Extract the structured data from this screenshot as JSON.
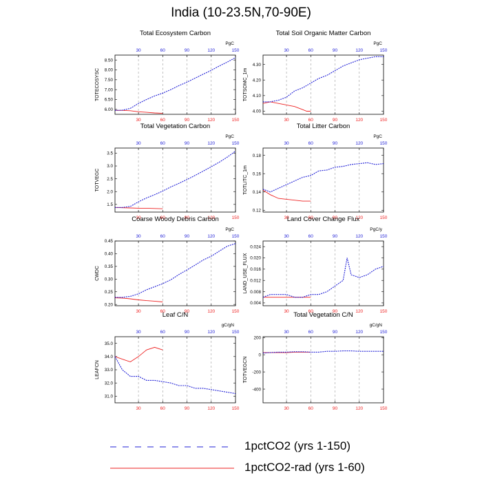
{
  "figure": {
    "title": "India (10-23.5N,70-90E)"
  },
  "colors": {
    "co2": "#1f1fd6",
    "rad": "#ee2222",
    "grid": "#999999"
  },
  "legend": [
    {
      "label": "1pctCO2 (yrs 1-150)",
      "color": "#1f1fd6",
      "style": "dashed"
    },
    {
      "label": "1pctCO2-rad (yrs 1-60)",
      "color": "#ee2222",
      "style": "solid"
    }
  ],
  "chart_data": [
    {
      "type": "line",
      "title": "Total Ecosystem Carbon",
      "ylabel": "TOTECOSYSC",
      "units": "PgC",
      "xlim": [
        1,
        150
      ],
      "xticks": [
        30,
        60,
        90,
        120,
        150
      ],
      "ylim": [
        5.75,
        8.75
      ],
      "yticks": [
        "6.00",
        "6.50",
        "7.00",
        "7.50",
        "8.00",
        "8.50"
      ],
      "series": [
        {
          "key": "co2",
          "x": [
            1,
            10,
            20,
            30,
            40,
            50,
            60,
            70,
            80,
            90,
            100,
            110,
            120,
            130,
            140,
            150
          ],
          "y": [
            5.95,
            5.96,
            6.05,
            6.3,
            6.5,
            6.68,
            6.82,
            7.0,
            7.2,
            7.38,
            7.58,
            7.78,
            7.98,
            8.2,
            8.4,
            8.62
          ]
        },
        {
          "key": "rad",
          "x": [
            1,
            10,
            20,
            30,
            40,
            50,
            60
          ],
          "y": [
            5.95,
            5.95,
            5.93,
            5.88,
            5.85,
            5.82,
            5.8
          ]
        }
      ]
    },
    {
      "type": "line",
      "title": "Total Soil Organic Matter Carbon",
      "ylabel": "TOTSOMC_1m",
      "units": "PgC",
      "xlim": [
        1,
        150
      ],
      "xticks": [
        30,
        60,
        90,
        120,
        150
      ],
      "ylim": [
        3.98,
        4.36
      ],
      "yticks": [
        "4.00",
        "4.10",
        "4.20",
        "4.30"
      ],
      "series": [
        {
          "key": "co2",
          "x": [
            1,
            10,
            20,
            30,
            40,
            50,
            60,
            70,
            80,
            90,
            100,
            110,
            120,
            130,
            140,
            150
          ],
          "y": [
            4.06,
            4.06,
            4.07,
            4.09,
            4.13,
            4.15,
            4.18,
            4.21,
            4.23,
            4.26,
            4.29,
            4.31,
            4.33,
            4.34,
            4.35,
            4.35
          ]
        },
        {
          "key": "rad",
          "x": [
            1,
            10,
            20,
            30,
            40,
            45,
            50,
            55,
            60
          ],
          "y": [
            4.05,
            4.06,
            4.05,
            4.04,
            4.03,
            4.02,
            4.01,
            4.0,
            4.0
          ]
        }
      ]
    },
    {
      "type": "line",
      "title": "Total Vegetation Carbon",
      "ylabel": "TOTVEGC",
      "units": "PgC",
      "xlim": [
        1,
        150
      ],
      "xticks": [
        30,
        60,
        90,
        120,
        150
      ],
      "ylim": [
        1.2,
        3.7
      ],
      "yticks": [
        "1.5",
        "2.0",
        "2.5",
        "3.0",
        "3.5"
      ],
      "series": [
        {
          "key": "co2",
          "x": [
            1,
            10,
            20,
            30,
            40,
            50,
            60,
            70,
            80,
            90,
            100,
            110,
            120,
            130,
            140,
            150
          ],
          "y": [
            1.38,
            1.38,
            1.42,
            1.6,
            1.75,
            1.88,
            2.02,
            2.18,
            2.32,
            2.47,
            2.63,
            2.8,
            2.97,
            3.15,
            3.35,
            3.58
          ]
        },
        {
          "key": "rad",
          "x": [
            1,
            10,
            20,
            30,
            40,
            50,
            60
          ],
          "y": [
            1.38,
            1.37,
            1.36,
            1.35,
            1.35,
            1.34,
            1.33
          ]
        }
      ]
    },
    {
      "type": "line",
      "title": "Total Litter Carbon",
      "ylabel": "TOTLITC_1m",
      "units": "PgC",
      "xlim": [
        1,
        150
      ],
      "xticks": [
        30,
        60,
        90,
        120,
        150
      ],
      "ylim": [
        0.118,
        0.188
      ],
      "yticks": [
        "0.12",
        "0.14",
        "0.16",
        "0.18"
      ],
      "series": [
        {
          "key": "co2",
          "x": [
            1,
            10,
            20,
            30,
            40,
            50,
            60,
            70,
            80,
            90,
            100,
            110,
            120,
            130,
            140,
            150
          ],
          "y": [
            0.143,
            0.14,
            0.144,
            0.148,
            0.152,
            0.156,
            0.158,
            0.163,
            0.164,
            0.167,
            0.168,
            0.17,
            0.171,
            0.172,
            0.17,
            0.171
          ]
        },
        {
          "key": "rad",
          "x": [
            1,
            10,
            20,
            30,
            40,
            50,
            60
          ],
          "y": [
            0.142,
            0.137,
            0.133,
            0.132,
            0.131,
            0.13,
            0.13
          ]
        }
      ]
    },
    {
      "type": "line",
      "title": "Coarse Woody Debris Carbon",
      "ylabel": "CWDC",
      "units": "PgC",
      "xlim": [
        1,
        150
      ],
      "xticks": [
        30,
        60,
        90,
        120,
        150
      ],
      "ylim": [
        0.195,
        0.45
      ],
      "yticks": [
        "0.20",
        "0.25",
        "0.30",
        "0.35",
        "0.40",
        "0.45"
      ],
      "series": [
        {
          "key": "co2",
          "x": [
            1,
            10,
            20,
            30,
            40,
            50,
            60,
            70,
            80,
            90,
            100,
            110,
            120,
            130,
            140,
            150
          ],
          "y": [
            0.228,
            0.228,
            0.232,
            0.242,
            0.258,
            0.27,
            0.282,
            0.297,
            0.318,
            0.336,
            0.355,
            0.375,
            0.39,
            0.41,
            0.43,
            0.44
          ]
        },
        {
          "key": "rad",
          "x": [
            1,
            10,
            20,
            30,
            40,
            50,
            60
          ],
          "y": [
            0.226,
            0.225,
            0.222,
            0.218,
            0.215,
            0.213,
            0.21
          ]
        }
      ]
    },
    {
      "type": "line",
      "title": "Land Cover Change Flux",
      "ylabel": "LAND_USE_FLUX",
      "units": "PgC/y",
      "xlim": [
        1,
        150
      ],
      "xticks": [
        30,
        60,
        90,
        120,
        150
      ],
      "ylim": [
        0.003,
        0.026
      ],
      "yticks": [
        "0.004",
        "0.008",
        "0.012",
        "0.016",
        "0.020",
        "0.024"
      ],
      "series": [
        {
          "key": "co2",
          "x": [
            1,
            10,
            20,
            30,
            40,
            50,
            60,
            70,
            80,
            90,
            100,
            105,
            110,
            120,
            130,
            140,
            150
          ],
          "y": [
            0.006,
            0.007,
            0.007,
            0.007,
            0.006,
            0.006,
            0.007,
            0.007,
            0.008,
            0.01,
            0.012,
            0.02,
            0.014,
            0.013,
            0.014,
            0.016,
            0.017
          ]
        },
        {
          "key": "rad",
          "x": [
            1,
            10,
            20,
            30,
            40,
            50,
            60
          ],
          "y": [
            0.006,
            0.006,
            0.006,
            0.006,
            0.006,
            0.006,
            0.006
          ]
        }
      ]
    },
    {
      "type": "line",
      "title": "Leaf C/N",
      "ylabel": "LEAFCN",
      "units": "gC/gN",
      "xlim": [
        1,
        150
      ],
      "xticks": [
        30,
        60,
        90,
        120,
        150
      ],
      "ylim": [
        30.5,
        35.5
      ],
      "yticks": [
        "31.0",
        "32.0",
        "33.0",
        "34.0",
        "35.0"
      ],
      "series": [
        {
          "key": "co2",
          "x": [
            1,
            10,
            20,
            30,
            40,
            50,
            60,
            70,
            80,
            90,
            100,
            110,
            120,
            130,
            140,
            150
          ],
          "y": [
            34.0,
            33.0,
            32.5,
            32.5,
            32.2,
            32.2,
            32.1,
            32.0,
            31.8,
            31.8,
            31.6,
            31.6,
            31.5,
            31.4,
            31.3,
            31.2
          ]
        },
        {
          "key": "rad",
          "x": [
            1,
            10,
            20,
            30,
            40,
            50,
            60
          ],
          "y": [
            34.0,
            33.8,
            33.6,
            34.0,
            34.5,
            34.7,
            34.5
          ]
        }
      ]
    },
    {
      "type": "line",
      "title": "Total Vegetation C/N",
      "ylabel": "TOTVEGCN",
      "units": "gC/gN",
      "xlim": [
        1,
        150
      ],
      "xticks": [
        30,
        60,
        90,
        120,
        150
      ],
      "ylim": [
        -560,
        210
      ],
      "yticks": [
        "-400",
        "-200",
        "0",
        "200"
      ],
      "series": [
        {
          "key": "co2",
          "x": [
            1,
            10,
            20,
            30,
            40,
            50,
            60,
            70,
            80,
            90,
            100,
            110,
            120,
            130,
            140,
            150
          ],
          "y": [
            20,
            25,
            30,
            30,
            35,
            35,
            30,
            30,
            40,
            40,
            45,
            45,
            40,
            40,
            40,
            40
          ]
        },
        {
          "key": "rad",
          "x": [
            1,
            10,
            20,
            30,
            40,
            50,
            60
          ],
          "y": [
            25,
            25,
            25,
            25,
            30,
            30,
            30
          ]
        }
      ]
    }
  ]
}
